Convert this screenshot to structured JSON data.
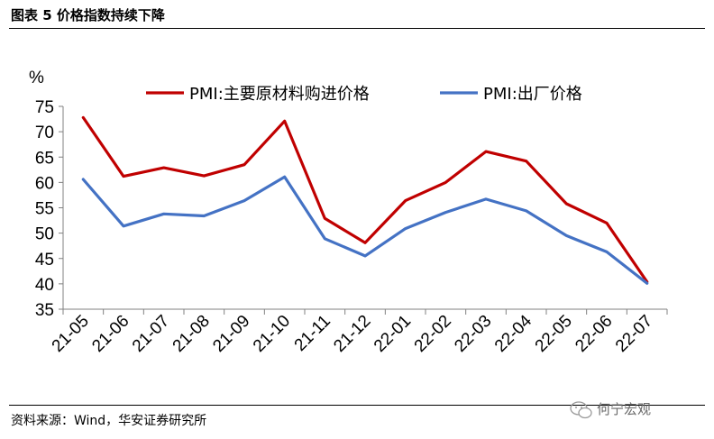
{
  "header": {
    "title": "图表 5 价格指数持续下降"
  },
  "footer": {
    "source": "资料来源：Wind，华安证券研究所",
    "watermark": "何宁宏观"
  },
  "chart_data": {
    "type": "line",
    "title": "图表 5 价格指数持续下降",
    "ylabel": "%",
    "xlabel": "",
    "ylim": [
      35,
      75
    ],
    "yticks": [
      35,
      40,
      45,
      50,
      55,
      60,
      65,
      70,
      75
    ],
    "categories": [
      "21-05",
      "21-06",
      "21-07",
      "21-08",
      "21-09",
      "21-10",
      "21-11",
      "21-12",
      "22-01",
      "22-02",
      "22-03",
      "22-04",
      "22-05",
      "22-06",
      "22-07"
    ],
    "legend_position": "top",
    "series": [
      {
        "name": "PMI:主要原材料购进价格",
        "color": "#C00000",
        "values": [
          72.8,
          61.2,
          62.9,
          61.3,
          63.5,
          72.1,
          52.9,
          48.1,
          56.4,
          60.0,
          66.1,
          64.2,
          55.8,
          52.0,
          40.4
        ]
      },
      {
        "name": "PMI:出厂价格",
        "color": "#4472C4",
        "values": [
          60.6,
          51.4,
          53.8,
          53.4,
          56.4,
          61.1,
          48.9,
          45.5,
          50.9,
          54.1,
          56.7,
          54.4,
          49.5,
          46.3,
          40.1
        ]
      }
    ]
  }
}
